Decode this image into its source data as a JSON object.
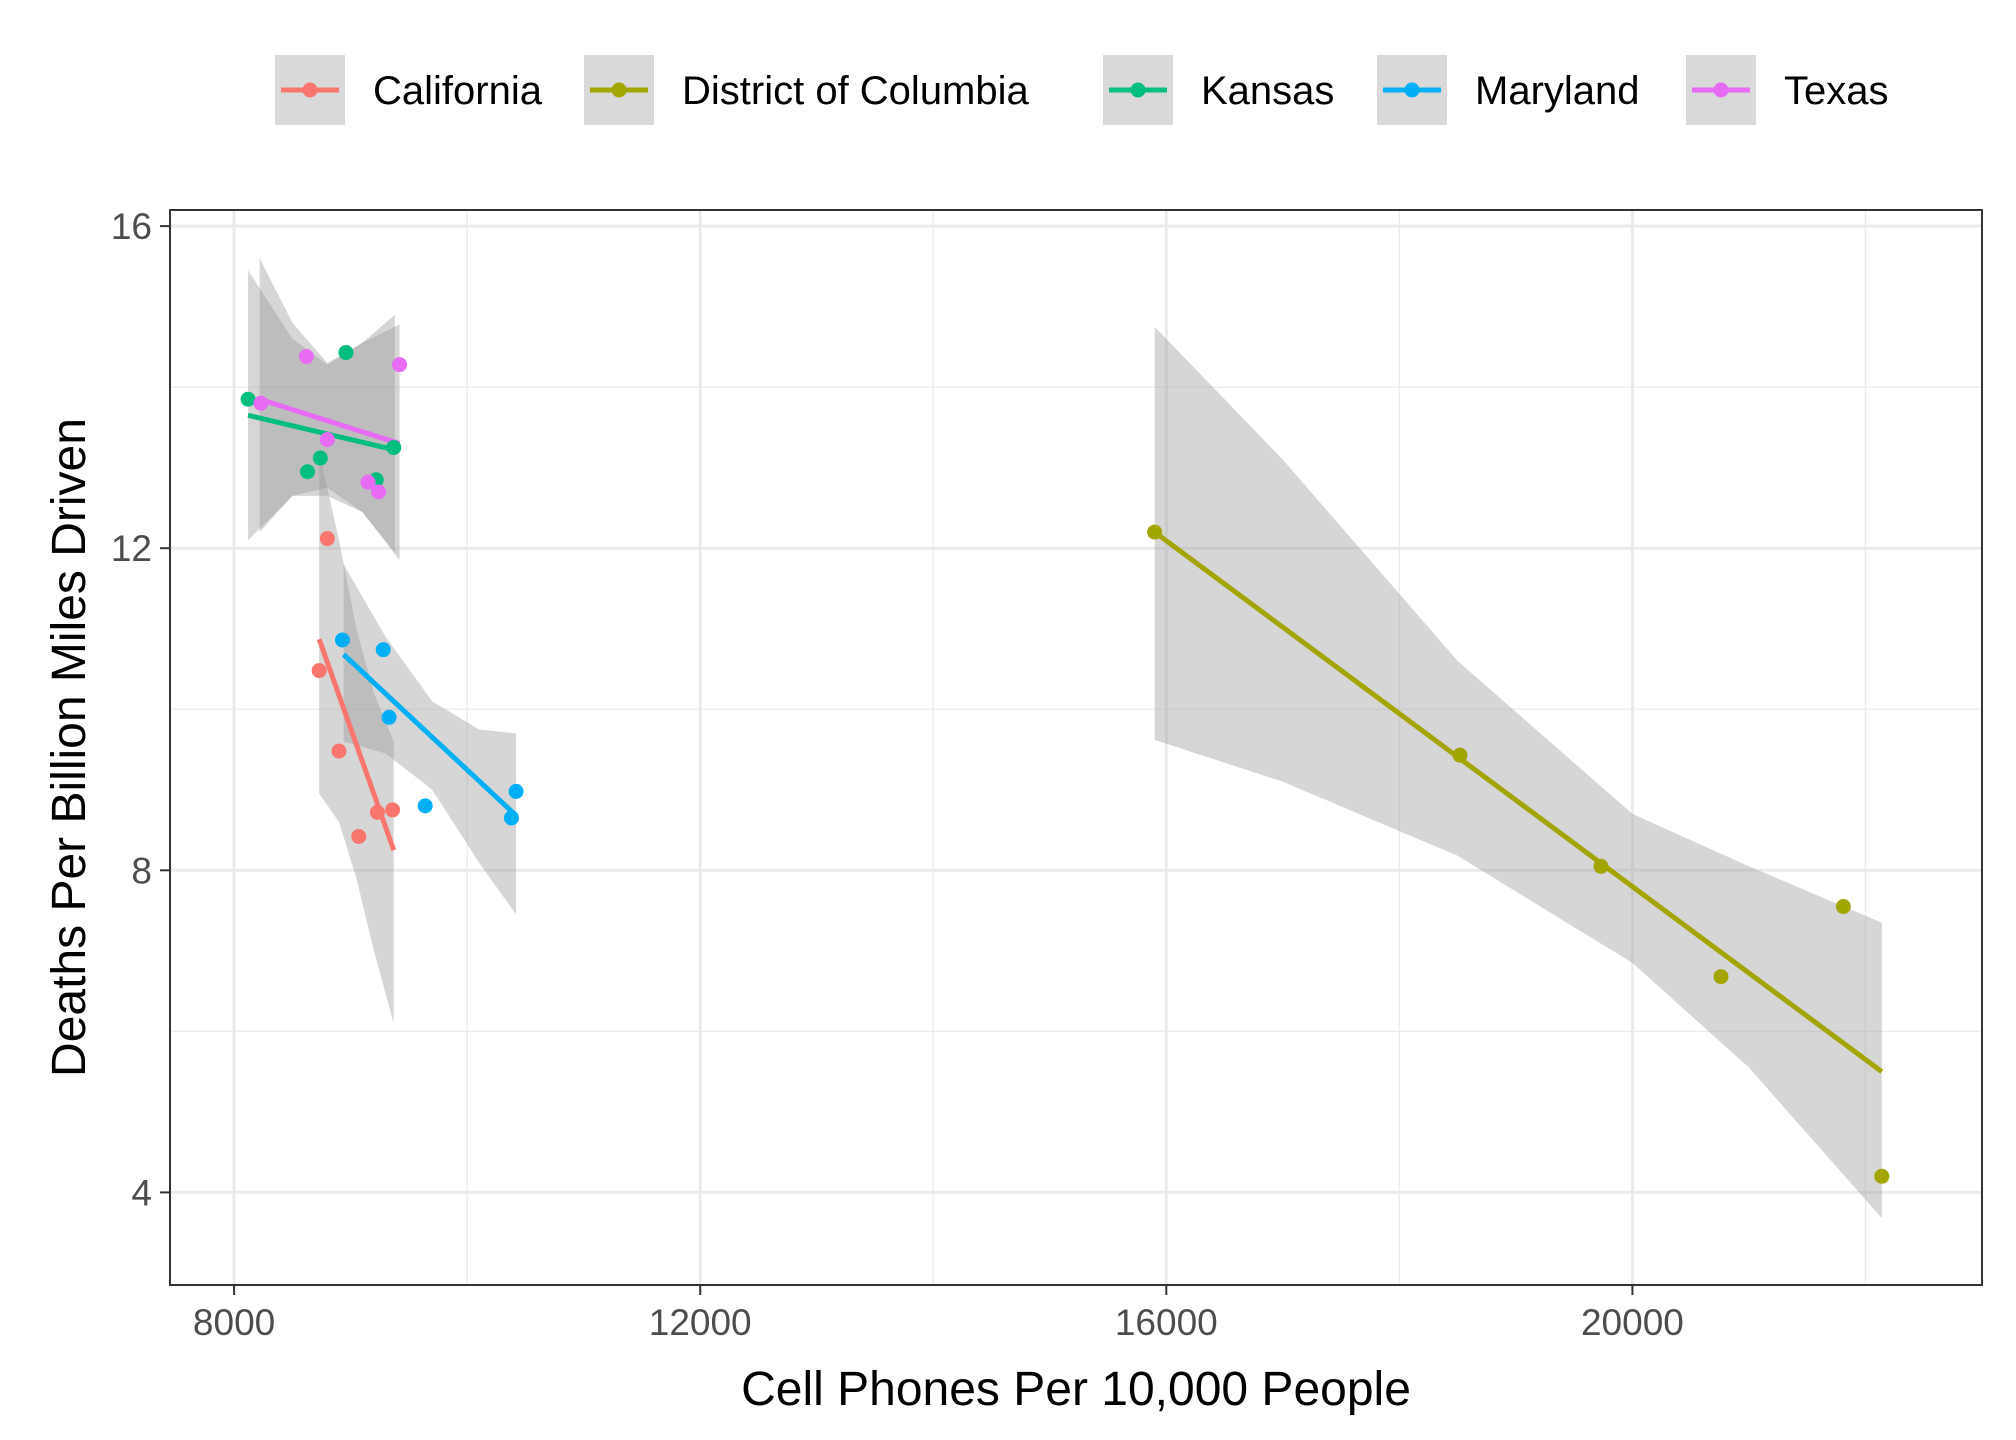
{
  "chart_data": {
    "type": "scatter",
    "title": "",
    "xlabel": "Cell Phones Per 10,000 People",
    "ylabel": "Deaths Per Billion Miles Driven",
    "xlim": [
      7450,
      23000
    ],
    "ylim": [
      2.85,
      16.2
    ],
    "x_ticks": [
      8000,
      12000,
      16000,
      20000
    ],
    "y_ticks": [
      4,
      8,
      12,
      16
    ],
    "x_tick_labels": [
      "8000",
      "12000",
      "16000",
      "20000"
    ],
    "y_tick_labels": [
      "4",
      "8",
      "12",
      "16"
    ],
    "grid": true,
    "legend_position": "top",
    "smooth": "linear fit with confidence band",
    "series": [
      {
        "name": "California",
        "color": "#F8766D",
        "points": [
          [
            8730,
            10.48
          ],
          [
            8800,
            12.12
          ],
          [
            8900,
            9.48
          ],
          [
            9070,
            8.42
          ],
          [
            9230,
            8.72
          ],
          [
            9360,
            8.75
          ]
        ],
        "fit": {
          "x": [
            8730,
            9370
          ],
          "y": [
            10.87,
            8.25
          ]
        },
        "band": {
          "x": [
            8730,
            8900,
            9050,
            9200,
            9370
          ],
          "upper": [
            13.2,
            12.1,
            11.0,
            10.2,
            9.6
          ],
          "lower": [
            8.95,
            8.6,
            7.9,
            7.0,
            6.1
          ]
        }
      },
      {
        "name": "District of Columbia",
        "color": "#A3A500",
        "points": [
          [
            15900,
            12.2
          ],
          [
            18520,
            9.43
          ],
          [
            19730,
            8.05
          ],
          [
            20760,
            6.68
          ],
          [
            21810,
            7.55
          ],
          [
            22140,
            4.2
          ]
        ],
        "fit": {
          "x": [
            15900,
            22140
          ],
          "y": [
            12.2,
            5.5
          ]
        },
        "band": {
          "x": [
            15900,
            17000,
            18500,
            20000,
            21000,
            22140
          ],
          "upper": [
            14.75,
            13.1,
            10.6,
            8.7,
            8.05,
            7.35
          ],
          "lower": [
            9.62,
            9.1,
            8.18,
            6.85,
            5.55,
            3.68
          ]
        }
      },
      {
        "name": "Kansas",
        "color": "#00BF7D",
        "points": [
          [
            8120,
            13.85
          ],
          [
            8630,
            12.95
          ],
          [
            8740,
            13.12
          ],
          [
            8960,
            14.43
          ],
          [
            9220,
            12.85
          ],
          [
            9370,
            13.25
          ]
        ],
        "fit": {
          "x": [
            8120,
            9380
          ],
          "y": [
            13.65,
            13.22
          ]
        },
        "band": {
          "x": [
            8120,
            8500,
            8800,
            9100,
            9380
          ],
          "upper": [
            15.45,
            14.6,
            14.28,
            14.55,
            14.9
          ],
          "lower": [
            12.1,
            12.65,
            12.65,
            12.45,
            11.95
          ]
        }
      },
      {
        "name": "Maryland",
        "color": "#00B0F6",
        "points": [
          [
            8930,
            10.86
          ],
          [
            9280,
            10.74
          ],
          [
            9330,
            9.9
          ],
          [
            9640,
            8.8
          ],
          [
            10380,
            8.65
          ],
          [
            10420,
            8.98
          ]
        ],
        "fit": {
          "x": [
            8940,
            10420
          ],
          "y": [
            10.68,
            8.68
          ]
        },
        "band": {
          "x": [
            8940,
            9300,
            9700,
            10100,
            10420
          ],
          "upper": [
            11.8,
            10.9,
            10.1,
            9.75,
            9.7
          ],
          "lower": [
            9.6,
            9.45,
            9.0,
            8.1,
            7.45
          ]
        }
      },
      {
        "name": "Texas",
        "color": "#E76BF3",
        "points": [
          [
            8230,
            13.8
          ],
          [
            8620,
            14.38
          ],
          [
            8800,
            13.35
          ],
          [
            9150,
            12.82
          ],
          [
            9240,
            12.7
          ],
          [
            9420,
            14.28
          ]
        ],
        "fit": {
          "x": [
            8220,
            9420
          ],
          "y": [
            13.85,
            13.3
          ]
        },
        "band": {
          "x": [
            8220,
            8500,
            8800,
            9100,
            9420
          ],
          "upper": [
            15.6,
            14.8,
            14.3,
            14.55,
            14.78
          ],
          "lower": [
            12.2,
            12.65,
            12.75,
            12.45,
            11.85
          ]
        }
      }
    ]
  }
}
